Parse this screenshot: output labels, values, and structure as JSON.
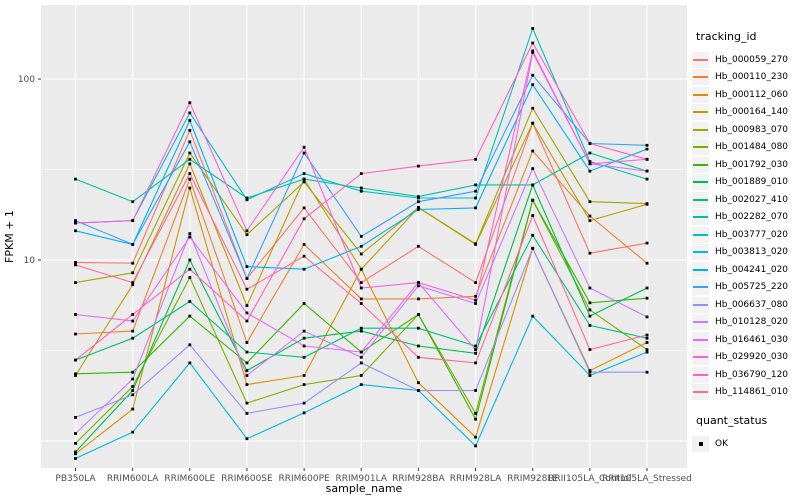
{
  "legend": {
    "tracking_title": "tracking_id",
    "quant_title": "quant_status",
    "quant_ok": "OK"
  },
  "chart_data": {
    "type": "line",
    "title": "",
    "xlabel": "sample_name",
    "ylabel": "FPKM + 1",
    "y_scale": "log10",
    "y_tick_labels": [
      "100",
      "10"
    ],
    "y_major_breaks": [
      100,
      10,
      1
    ],
    "y_minor_breaks": [
      31.62,
      3.162
    ],
    "ylim": [
      0.7,
      255
    ],
    "grid": true,
    "legend_position": "right",
    "panel_color": "#EBEBEB",
    "gridline_color": "#FFFFFF",
    "tick_label_color": "#4D4D4D",
    "point_marker": {
      "shape": "square",
      "color": "#000000",
      "meaning": "OK"
    },
    "categories": [
      "PB350LA",
      "RRIM600LA",
      "RRIM600LE",
      "RRIM600SE",
      "RRIM600PE",
      "RRIM901LA",
      "RRIM928BA",
      "RRIM928LA",
      "RRIM928LE",
      "RRII105LA_Control",
      "RRII105LA_Stressed"
    ],
    "series": [
      {
        "name": "Hb_000059_270",
        "color": "#F8766D",
        "values": [
          9.7,
          9.6,
          52,
          7.9,
          19.4,
          7.5,
          11.9,
          7.5,
          57,
          10.9,
          12.4
        ]
      },
      {
        "name": "Hb_000110_230",
        "color": "#EA8331",
        "values": [
          3.9,
          4.05,
          28,
          3.5,
          12.2,
          6.1,
          6.1,
          6.3,
          40,
          17.5,
          9.6
        ]
      },
      {
        "name": "Hb_000112_060",
        "color": "#D89000",
        "values": [
          0.85,
          1.5,
          25,
          2.05,
          2.3,
          8.9,
          2.1,
          1.05,
          11.6,
          2.45,
          3.5
        ]
      },
      {
        "name": "Hb_000164_140",
        "color": "#C09B00",
        "values": [
          2.3,
          7.3,
          34,
          5.6,
          28,
          8.9,
          19.5,
          12.2,
          57,
          16.5,
          20.3
        ]
      },
      {
        "name": "Hb_000983_070",
        "color": "#A3A500",
        "values": [
          7.5,
          8.5,
          39,
          13.8,
          27,
          10.8,
          19.5,
          12.3,
          69,
          21,
          20.5
        ]
      },
      {
        "name": "Hb_001484_080",
        "color": "#7CAE00",
        "values": [
          0.97,
          2.0,
          8.0,
          1.62,
          2.05,
          2.3,
          5.0,
          1.42,
          21.4,
          5.3,
          3.2
        ]
      },
      {
        "name": "Hb_001792_030",
        "color": "#39B600",
        "values": [
          2.35,
          2.4,
          4.9,
          2.7,
          5.75,
          3.1,
          5.0,
          1.32,
          21.4,
          5.8,
          6.15
        ]
      },
      {
        "name": "Hb_001889_010",
        "color": "#00BB4E",
        "values": [
          0.87,
          1.9,
          10,
          2.45,
          3.7,
          4.05,
          3.35,
          3.05,
          26,
          4.9,
          7.0
        ]
      },
      {
        "name": "Hb_002027_410",
        "color": "#00BF7D",
        "values": [
          2.8,
          3.7,
          5.9,
          3.1,
          2.9,
          4.2,
          4.2,
          3.35,
          13.7,
          4.35,
          3.7
        ]
      },
      {
        "name": "Hb_002282_070",
        "color": "#00C1A3",
        "values": [
          28,
          21,
          36,
          22,
          28,
          25,
          22.4,
          26,
          26,
          39,
          31
        ]
      },
      {
        "name": "Hb_003777_020",
        "color": "#00BFC4",
        "values": [
          16,
          16.5,
          65,
          21.5,
          30,
          24,
          22,
          22,
          190,
          35,
          28
        ]
      },
      {
        "name": "Hb_003813_020",
        "color": "#00BAE0",
        "values": [
          0.8,
          1.12,
          2.7,
          1.03,
          1.43,
          2.05,
          1.9,
          0.94,
          4.9,
          2.3,
          3.1
        ]
      },
      {
        "name": "Hb_004241_020",
        "color": "#00B0F6",
        "values": [
          14.5,
          12.2,
          59,
          9.2,
          8.9,
          11.9,
          19,
          19.4,
          93,
          31,
          41
        ]
      },
      {
        "name": "Hb_005725_220",
        "color": "#35A2FF",
        "values": [
          16.5,
          12.2,
          45,
          7.9,
          39,
          13.5,
          21,
          24,
          105,
          44,
          43
        ]
      },
      {
        "name": "Hb_006637_080",
        "color": "#9590FF",
        "values": [
          1.35,
          1.8,
          3.4,
          1.42,
          1.62,
          2.7,
          1.9,
          1.9,
          11.6,
          2.4,
          2.4
        ]
      },
      {
        "name": "Hb_010128_020",
        "color": "#C77CFF",
        "values": [
          1.1,
          2.2,
          14,
          2.3,
          4.05,
          2.9,
          7.2,
          5.75,
          32,
          7.0,
          4.85
        ]
      },
      {
        "name": "Hb_016461_030",
        "color": "#E76BF3",
        "values": [
          5.0,
          4.6,
          13.4,
          5.1,
          3.35,
          3.1,
          7.5,
          3.2,
          140,
          34,
          31
        ]
      },
      {
        "name": "Hb_029920_030",
        "color": "#FA62DB",
        "values": [
          16,
          16.5,
          74,
          14.5,
          42,
          7.0,
          7.5,
          6.0,
          143,
          34,
          36
        ]
      },
      {
        "name": "Hb_036790_120",
        "color": "#FF62BC",
        "values": [
          2.8,
          5.0,
          8.9,
          4.6,
          16.9,
          30,
          33,
          36,
          158,
          44,
          36
        ]
      },
      {
        "name": "Hb_114861_010",
        "color": "#FF6A98",
        "values": [
          9.4,
          7.5,
          30,
          6.9,
          10.5,
          5.75,
          2.9,
          2.7,
          17.6,
          3.2,
          3.85
        ]
      }
    ]
  }
}
